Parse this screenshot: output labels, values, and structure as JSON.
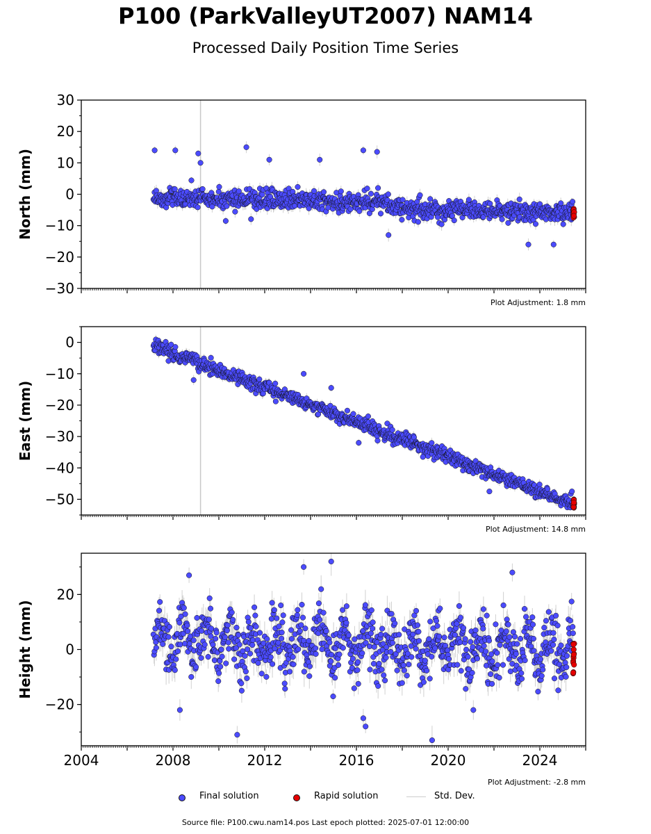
{
  "header": {
    "title": "P100 (ParkValleyUT2007) NAM14",
    "subtitle": "Processed Daily Position Time Series"
  },
  "legend": {
    "final": "Final solution",
    "rapid": "Rapid solution",
    "std": "Std. Dev."
  },
  "footer": {
    "source": "Source file: P100.cwu.nam14.pos  Last epoch plotted: 2025-07-01 12:00:00"
  },
  "colors": {
    "final": "#4b4bff",
    "rapid": "#e60000",
    "std": "#c8c8c8",
    "marker_edge": "#111111"
  },
  "chart_data": [
    {
      "type": "scatter",
      "ylabel": "North (mm)",
      "plot_adjustment": "Plot Adjustment: 1.8 mm",
      "xlim": [
        2004,
        2026
      ],
      "ylim": [
        -30,
        30
      ],
      "yticks": [
        30,
        20,
        10,
        0,
        -10,
        -20,
        -30
      ],
      "ytick_labels": [
        "30",
        "20",
        "10",
        "0",
        "−10",
        "−20",
        "−30"
      ],
      "vline": 2009.2,
      "series": [
        {
          "name": "Final solution",
          "x_range": [
            2007.15,
            2025.45
          ],
          "trend": [
            [
              2007.15,
              -1.0
            ],
            [
              2017.0,
              -2.5
            ],
            [
              2018.0,
              -4.5
            ],
            [
              2025.45,
              -6.0
            ]
          ],
          "scatter_sd": 1.6,
          "sigma": 1.5
        },
        {
          "name": "Rapid solution",
          "x_range": [
            2025.45,
            2025.5
          ],
          "y_range": [
            -7.5,
            -4.5
          ]
        }
      ],
      "outliers": [
        [
          2007.2,
          14
        ],
        [
          2008.1,
          14
        ],
        [
          2009.1,
          13
        ],
        [
          2011.2,
          15
        ],
        [
          2012.2,
          11
        ],
        [
          2016.3,
          14
        ],
        [
          2016.9,
          13.5
        ],
        [
          2014.4,
          11
        ],
        [
          2017.4,
          -13
        ],
        [
          2023.5,
          -16
        ],
        [
          2024.6,
          -16
        ],
        [
          2010.3,
          -8.5
        ],
        [
          2009.2,
          10
        ]
      ]
    },
    {
      "type": "scatter",
      "ylabel": "East (mm)",
      "plot_adjustment": "Plot Adjustment: 14.8 mm",
      "xlim": [
        2004,
        2026
      ],
      "ylim": [
        -55,
        5
      ],
      "yticks": [
        0,
        -10,
        -20,
        -30,
        -40,
        -50
      ],
      "ytick_labels": [
        "0",
        "−10",
        "−20",
        "−30",
        "−40",
        "−50"
      ],
      "vline": 2009.2,
      "series": [
        {
          "name": "Final solution",
          "x_range": [
            2007.15,
            2025.45
          ],
          "trend": [
            [
              2007.15,
              -1.0
            ],
            [
              2025.45,
              -51.5
            ]
          ],
          "scatter_sd": 1.1,
          "sigma": 1.2
        },
        {
          "name": "Rapid solution",
          "x_range": [
            2025.45,
            2025.5
          ],
          "y_range": [
            -53.0,
            -50.0
          ]
        }
      ],
      "outliers": [
        [
          2008.9,
          -12
        ],
        [
          2013.7,
          -10
        ],
        [
          2014.9,
          -14.5
        ],
        [
          2016.1,
          -32
        ],
        [
          2018.9,
          -36.5
        ],
        [
          2021.8,
          -47.5
        ],
        [
          2025.4,
          -47.5
        ]
      ]
    },
    {
      "type": "scatter",
      "ylabel": "Height (mm)",
      "plot_adjustment": "Plot Adjustment: -2.8 mm",
      "xlim": [
        2004,
        2026
      ],
      "ylim": [
        -35,
        35
      ],
      "yticks": [
        20,
        0,
        -20
      ],
      "ytick_labels": [
        "20",
        "0",
        "−20"
      ],
      "xticks": [
        2004,
        2008,
        2012,
        2016,
        2020,
        2024
      ],
      "xtick_labels": [
        "2004",
        "2008",
        "2012",
        "2016",
        "2020",
        "2024"
      ],
      "series": [
        {
          "name": "Final solution",
          "x_range": [
            2007.15,
            2025.45
          ],
          "trend": [
            [
              2007.15,
              3.0
            ],
            [
              2025.45,
              0.0
            ]
          ],
          "seasonal_amplitude": 5.5,
          "scatter_sd": 5.0,
          "sigma": 4.0
        },
        {
          "name": "Rapid solution",
          "x_range": [
            2025.45,
            2025.5
          ],
          "y_range": [
            -9.0,
            3.0
          ]
        }
      ],
      "outliers": [
        [
          2008.7,
          27
        ],
        [
          2013.7,
          30
        ],
        [
          2014.9,
          32
        ],
        [
          2022.8,
          28
        ],
        [
          2010.8,
          -31
        ],
        [
          2019.3,
          -33
        ],
        [
          2016.3,
          -25
        ],
        [
          2016.4,
          -28
        ],
        [
          2008.3,
          -22
        ],
        [
          2021.1,
          -22
        ]
      ]
    }
  ]
}
